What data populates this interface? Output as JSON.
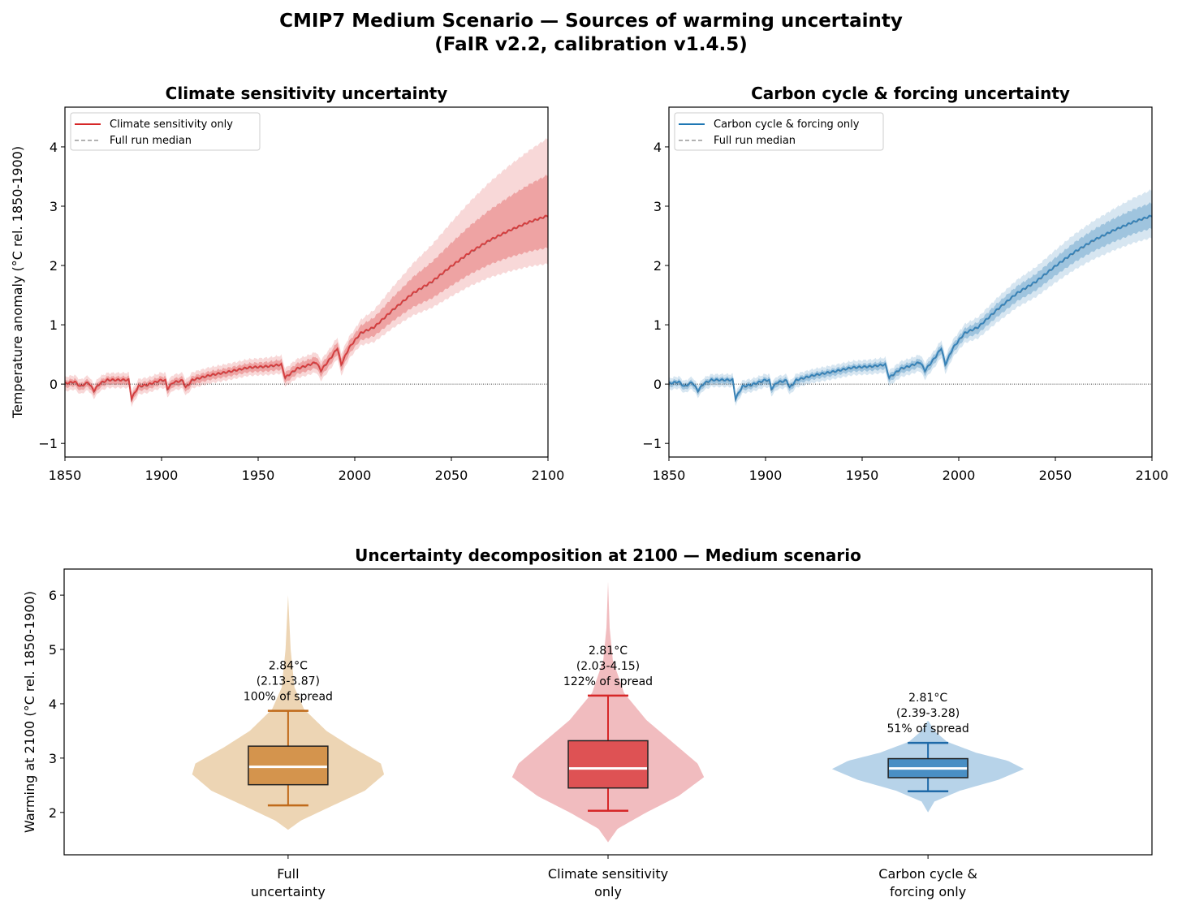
{
  "title": {
    "line1": "CMIP7 Medium Scenario — Sources of warming uncertainty",
    "line2": "(FaIR v2.2, calibration v1.4.5)"
  },
  "chart_data": [
    {
      "type": "line",
      "title": "Climate sensitivity uncertainty",
      "ylabel": "Temperature anomaly (°C rel. 1850-1900)",
      "xlabel": "",
      "xlim": [
        1850,
        2100
      ],
      "ylim": [
        -1.23,
        4.67
      ],
      "xticks": [
        "1850",
        "1900",
        "1950",
        "2000",
        "2050",
        "2100"
      ],
      "yticks": [
        "−1",
        "0",
        "1",
        "2",
        "3",
        "4"
      ],
      "color": "#d62728",
      "legend": [
        "Climate sensitivity only",
        "Full run median"
      ],
      "legend_position": "upper-left",
      "band_years": [
        1850,
        1950,
        2000,
        2025,
        2050,
        2075,
        2100
      ],
      "inner_lo": [
        0.06,
        0.07,
        0.1,
        0.2,
        0.32,
        0.42,
        0.53
      ],
      "inner_hi": [
        0.06,
        0.08,
        0.12,
        0.25,
        0.4,
        0.55,
        0.7
      ],
      "outer_lo": [
        0.12,
        0.13,
        0.18,
        0.33,
        0.5,
        0.65,
        0.8
      ],
      "outer_hi": [
        0.12,
        0.15,
        0.2,
        0.45,
        0.75,
        1.05,
        1.32
      ]
    },
    {
      "type": "line",
      "title": "Carbon cycle & forcing uncertainty",
      "ylabel": "",
      "xlabel": "",
      "xlim": [
        1850,
        2100
      ],
      "ylim": [
        -1.23,
        4.67
      ],
      "xticks": [
        "1850",
        "1900",
        "1950",
        "2000",
        "2050",
        "2100"
      ],
      "yticks": [
        "−1",
        "0",
        "1",
        "2",
        "3",
        "4"
      ],
      "color": "#1f77b4",
      "legend": [
        "Carbon cycle & forcing only",
        "Full run median"
      ],
      "legend_position": "upper-left",
      "band_years": [
        1850,
        1950,
        2000,
        2025,
        2050,
        2075,
        2100
      ],
      "inner_lo": [
        0.05,
        0.06,
        0.08,
        0.12,
        0.15,
        0.18,
        0.2
      ],
      "inner_hi": [
        0.05,
        0.06,
        0.08,
        0.12,
        0.15,
        0.2,
        0.23
      ],
      "outer_lo": [
        0.1,
        0.12,
        0.15,
        0.22,
        0.27,
        0.32,
        0.36
      ],
      "outer_hi": [
        0.1,
        0.12,
        0.15,
        0.22,
        0.28,
        0.35,
        0.45
      ]
    },
    {
      "type": "violin",
      "title": "Uncertainty decomposition at 2100 — Medium scenario",
      "ylabel": "Warming at 2100 (°C rel. 1850-1900)",
      "ylim": [
        1.22,
        6.48
      ],
      "yticks": [
        "2",
        "3",
        "4",
        "5",
        "6"
      ],
      "categories": [
        {
          "label1": "Full",
          "label2": "uncertainty",
          "median": 2.84,
          "q1": 2.51,
          "q3": 3.22,
          "p5": 2.13,
          "p95": 3.87,
          "ann1": "2.84°C",
          "ann2": "(2.13-3.87)",
          "ann3": "100% of spread",
          "fill": "#edd5b4",
          "box": "#d4944d",
          "line": "#c06a1a",
          "profile": [
            [
              1.68,
              0
            ],
            [
              1.85,
              0.04
            ],
            [
              2.1,
              0.13
            ],
            [
              2.4,
              0.24
            ],
            [
              2.7,
              0.3
            ],
            [
              2.9,
              0.29
            ],
            [
              3.2,
              0.2
            ],
            [
              3.5,
              0.12
            ],
            [
              3.9,
              0.05
            ],
            [
              4.3,
              0.02
            ],
            [
              5,
              0.008
            ],
            [
              6,
              0
            ]
          ]
        },
        {
          "label1": "Climate sensitivity",
          "label2": "only",
          "median": 2.81,
          "q1": 2.45,
          "q3": 3.32,
          "p5": 2.03,
          "p95": 4.15,
          "ann1": "2.81°C",
          "ann2": "(2.03-4.15)",
          "ann3": "122% of spread",
          "fill": "#f1bcbf",
          "box": "#de5254",
          "line": "#d62728",
          "profile": [
            [
              1.45,
              0
            ],
            [
              1.7,
              0.03
            ],
            [
              2.0,
              0.12
            ],
            [
              2.3,
              0.22
            ],
            [
              2.65,
              0.3
            ],
            [
              2.9,
              0.28
            ],
            [
              3.3,
              0.2
            ],
            [
              3.7,
              0.12
            ],
            [
              4.2,
              0.05
            ],
            [
              4.8,
              0.015
            ],
            [
              5.4,
              0.005
            ],
            [
              6.25,
              0
            ]
          ]
        },
        {
          "label1": "Carbon cycle &",
          "label2": "forcing only",
          "median": 2.81,
          "q1": 2.64,
          "q3": 2.99,
          "p5": 2.39,
          "p95": 3.28,
          "ann1": "2.81°C",
          "ann2": "(2.39-3.28)",
          "ann3": "51% of spread",
          "fill": "#b7d3e9",
          "box": "#4a8fc4",
          "line": "#1f6aa8",
          "profile": [
            [
              2.0,
              0
            ],
            [
              2.2,
              0.02
            ],
            [
              2.4,
              0.1
            ],
            [
              2.6,
              0.22
            ],
            [
              2.8,
              0.3
            ],
            [
              2.95,
              0.25
            ],
            [
              3.1,
              0.15
            ],
            [
              3.3,
              0.06
            ],
            [
              3.5,
              0.02
            ],
            [
              3.7,
              0
            ]
          ]
        }
      ]
    }
  ],
  "median_keypoints": [
    [
      1850,
      0
    ],
    [
      1855,
      0.03
    ],
    [
      1858,
      -0.05
    ],
    [
      1862,
      0.02
    ],
    [
      1865,
      -0.12
    ],
    [
      1868,
      0
    ],
    [
      1872,
      0.06
    ],
    [
      1883,
      0.06
    ],
    [
      1884.5,
      -0.25
    ],
    [
      1888,
      -0.05
    ],
    [
      1893,
      -0.02
    ],
    [
      1900,
      0.06
    ],
    [
      1902,
      0.05
    ],
    [
      1903,
      -0.09
    ],
    [
      1906,
      0.02
    ],
    [
      1911,
      0.05
    ],
    [
      1912.5,
      -0.07
    ],
    [
      1916,
      0.06
    ],
    [
      1925,
      0.14
    ],
    [
      1935,
      0.2
    ],
    [
      1945,
      0.27
    ],
    [
      1955,
      0.29
    ],
    [
      1962,
      0.32
    ],
    [
      1964,
      0.1
    ],
    [
      1966,
      0.15
    ],
    [
      1970,
      0.25
    ],
    [
      1975,
      0.3
    ],
    [
      1980,
      0.36
    ],
    [
      1982.5,
      0.22
    ],
    [
      1988,
      0.45
    ],
    [
      1991,
      0.6
    ],
    [
      1993,
      0.32
    ],
    [
      1997,
      0.6
    ],
    [
      2003,
      0.85
    ],
    [
      2010,
      0.95
    ],
    [
      2020,
      1.25
    ],
    [
      2030,
      1.52
    ],
    [
      2040,
      1.72
    ],
    [
      2050,
      1.98
    ],
    [
      2060,
      2.22
    ],
    [
      2070,
      2.42
    ],
    [
      2080,
      2.58
    ],
    [
      2090,
      2.72
    ],
    [
      2100,
      2.83
    ]
  ]
}
